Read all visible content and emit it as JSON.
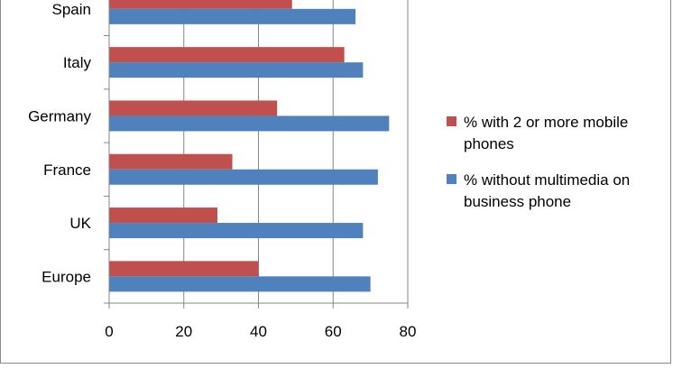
{
  "chart_data": {
    "type": "bar",
    "orientation": "horizontal",
    "categories": [
      "Europe",
      "UK",
      "France",
      "Germany",
      "Italy",
      "Spain"
    ],
    "series": [
      {
        "name": "% with 2 or more mobile phones",
        "color": "#c0504d",
        "values": [
          40,
          29,
          33,
          45,
          63,
          49
        ]
      },
      {
        "name": "% without multimedia on business phone",
        "color": "#4f81bd",
        "values": [
          70,
          68,
          72,
          75,
          68,
          66
        ]
      }
    ],
    "xlim": [
      0,
      80
    ],
    "xticks": [
      0,
      20,
      40,
      60,
      80
    ],
    "grid": "vertical",
    "legend_position": "right",
    "legend_lines": [
      [
        "% with 2 or more mobile",
        "phones"
      ],
      [
        "% without multimedia on",
        "business phone"
      ]
    ]
  }
}
